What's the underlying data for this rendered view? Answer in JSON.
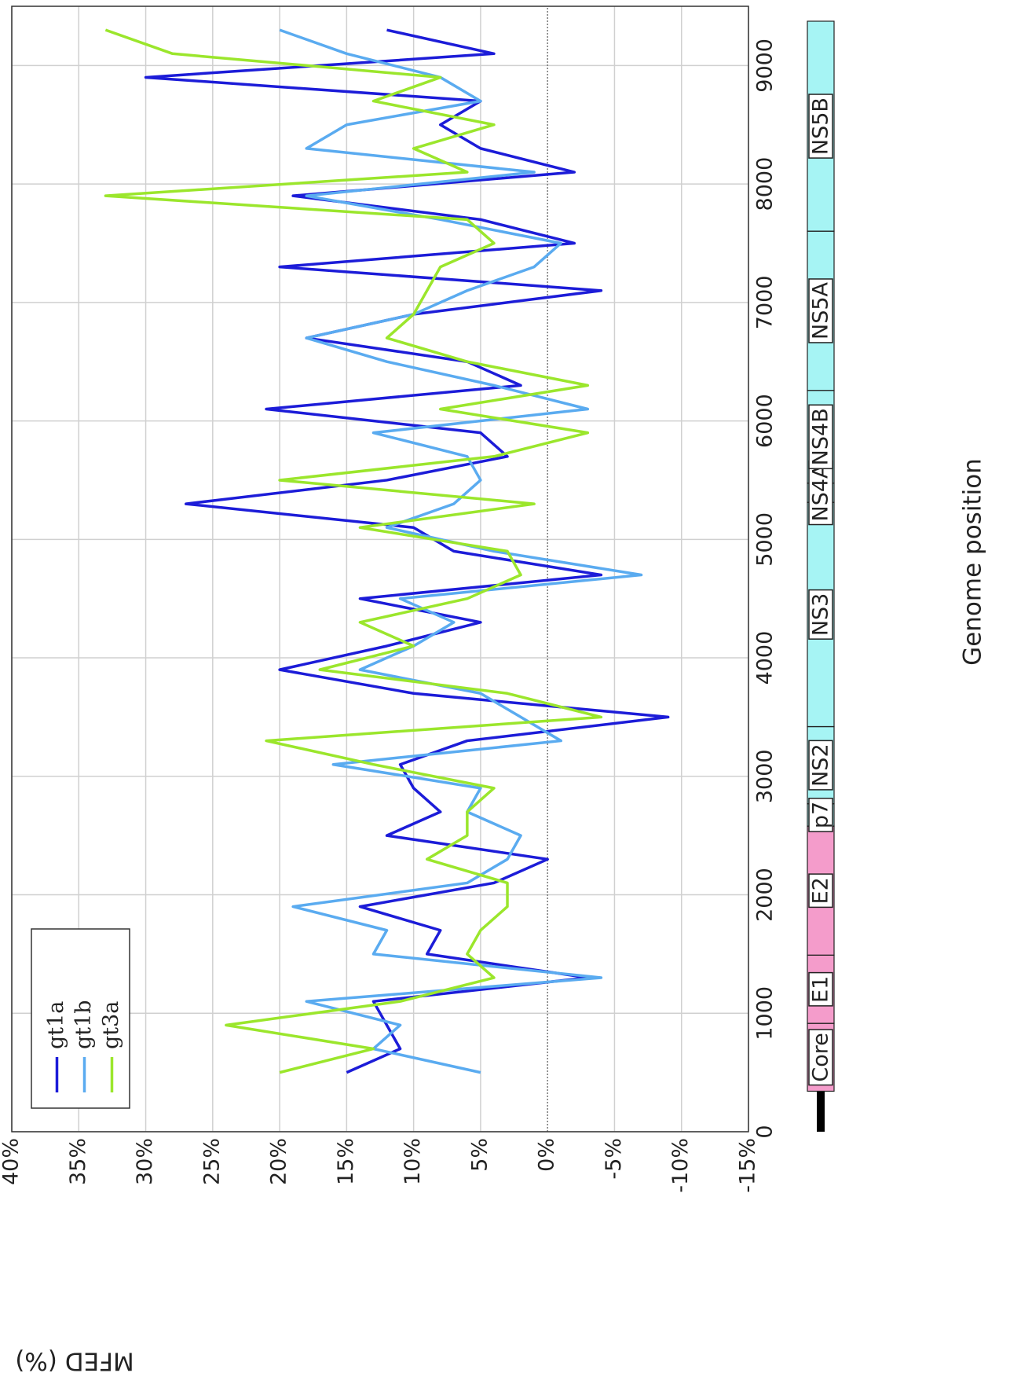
{
  "chart_data": {
    "type": "line",
    "xlabel": "Genome position",
    "ylabel": "MFED (%)",
    "x": [
      500,
      700,
      900,
      1100,
      1300,
      1500,
      1700,
      1900,
      2100,
      2300,
      2500,
      2700,
      2900,
      3100,
      3300,
      3500,
      3700,
      3900,
      4100,
      4300,
      4500,
      4700,
      4900,
      5100,
      5300,
      5500,
      5700,
      5900,
      6100,
      6300,
      6500,
      6700,
      6900,
      7100,
      7300,
      7500,
      7700,
      7900,
      8100,
      8300,
      8500,
      8700,
      8900,
      9100,
      9300
    ],
    "series": [
      {
        "name": "gt1a",
        "color": "#1c1cd8",
        "values": [
          15,
          11,
          12,
          13,
          -3,
          9,
          8,
          14,
          4,
          0,
          12,
          8,
          10,
          11,
          6,
          -9,
          10,
          20,
          12,
          5,
          14,
          -4,
          7,
          10,
          27,
          12,
          3,
          5,
          21,
          2,
          6,
          18,
          10,
          -4,
          20,
          -2,
          5,
          19,
          -2,
          5,
          8,
          5,
          30,
          4,
          12
        ]
      },
      {
        "name": "gt1b",
        "color": "#5aabf0",
        "values": [
          5,
          13,
          11,
          18,
          -4,
          13,
          12,
          19,
          6,
          3,
          2,
          6,
          5,
          16,
          -1,
          2,
          5,
          14,
          10,
          7,
          11,
          -7,
          4,
          12,
          7,
          5,
          6,
          13,
          -3,
          4,
          12,
          18,
          10,
          6,
          1,
          -1,
          8,
          18,
          1,
          18,
          15,
          5,
          8,
          15,
          20
        ]
      },
      {
        "name": "gt3a",
        "color": "#9be62c",
        "values": [
          20,
          13,
          24,
          11,
          4,
          6,
          5,
          3,
          3,
          9,
          6,
          6,
          4,
          13,
          21,
          -4,
          3,
          17,
          10,
          14,
          6,
          2,
          3,
          14,
          1,
          20,
          4,
          -3,
          8,
          -3,
          6,
          12,
          10,
          9,
          8,
          4,
          6,
          33,
          6,
          10,
          4,
          13,
          8,
          28,
          33
        ]
      }
    ],
    "xlim": [
      0,
      9500
    ],
    "xticks": [
      0,
      1000,
      2000,
      3000,
      4000,
      5000,
      6000,
      7000,
      8000,
      9000
    ],
    "ylim": [
      -15,
      40
    ],
    "yticks": [
      {
        "value": -15,
        "label": "-15%"
      },
      {
        "value": -10,
        "label": "-10%"
      },
      {
        "value": -5,
        "label": "-5%"
      },
      {
        "value": 0,
        "label": "0%"
      },
      {
        "value": 5,
        "label": "5%"
      },
      {
        "value": 10,
        "label": "10%"
      },
      {
        "value": 15,
        "label": "15%"
      },
      {
        "value": 20,
        "label": "20%"
      },
      {
        "value": 25,
        "label": "25%"
      },
      {
        "value": 30,
        "label": "30%"
      },
      {
        "value": 35,
        "label": "35%"
      },
      {
        "value": 40,
        "label": "40%"
      }
    ],
    "grid": true,
    "legend": "upper left",
    "regions": [
      {
        "start": 0,
        "end": 342,
        "color": "#000000"
      },
      {
        "name": "Core",
        "start": 342,
        "end": 914,
        "color": "#f49ccb"
      },
      {
        "name": "E1",
        "start": 915,
        "end": 1490,
        "color": "#f49ccb"
      },
      {
        "name": "E2",
        "start": 1491,
        "end": 2579,
        "color": "#f49ccb"
      },
      {
        "name": "p7",
        "start": 2580,
        "end": 2768,
        "color": "#a6f4f4"
      },
      {
        "name": "NS2",
        "start": 2769,
        "end": 3419,
        "color": "#a6f4f4"
      },
      {
        "name": "NS3",
        "start": 3420,
        "end": 5312,
        "color": "#a6f4f4"
      },
      {
        "name": "NS4A",
        "start": 5313,
        "end": 5474,
        "color": "#a6f4f4"
      },
      {
        "name": "NS4B",
        "start": 5475,
        "end": 6257,
        "color": "#a6f4f4"
      },
      {
        "name": "NS5A",
        "start": 6258,
        "end": 7601,
        "color": "#a6f4f4"
      },
      {
        "name": "NS5B",
        "start": 7602,
        "end": 9374,
        "color": "#a6f4f4"
      }
    ]
  }
}
